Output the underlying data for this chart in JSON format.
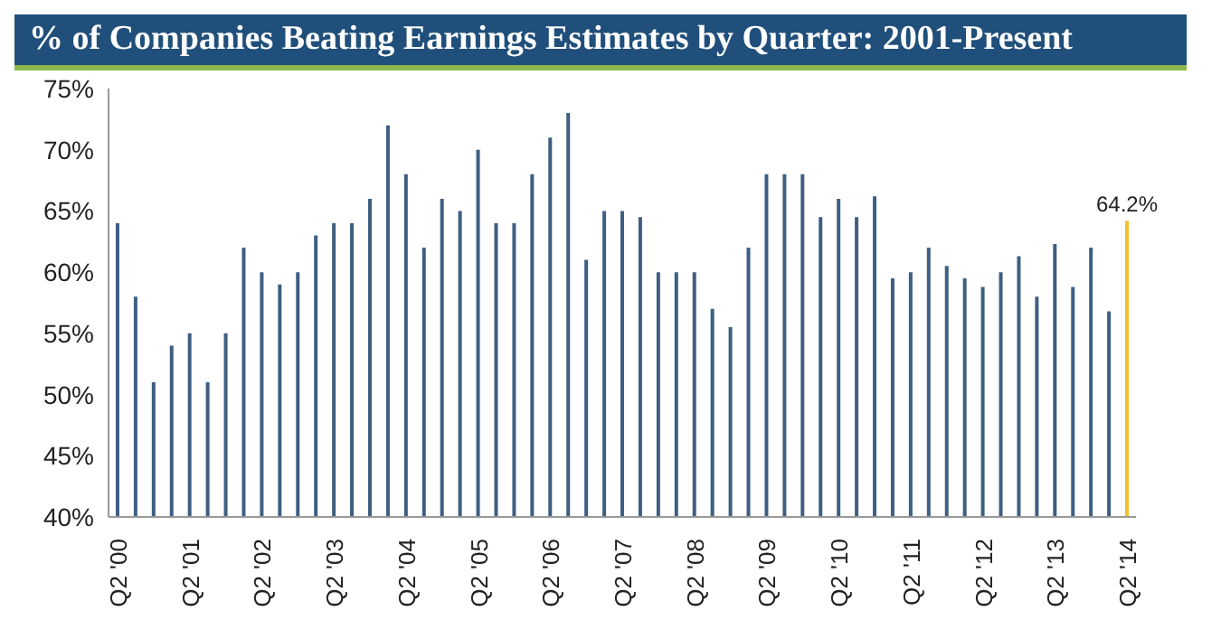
{
  "chart_data": {
    "type": "bar",
    "title": "% of Companies Beating Earnings Estimates by Quarter: 2001-Present",
    "categories": [
      "Q2 '00",
      null,
      null,
      null,
      "Q2 '01",
      null,
      null,
      null,
      "Q2 '02",
      null,
      null,
      null,
      "Q2 '03",
      null,
      null,
      null,
      "Q2 '04",
      null,
      null,
      null,
      "Q2 '05",
      null,
      null,
      null,
      "Q2 '06",
      null,
      null,
      null,
      "Q2 '07",
      null,
      null,
      null,
      "Q2 '08",
      null,
      null,
      null,
      "Q2 '09",
      null,
      null,
      null,
      "Q2 '10",
      null,
      null,
      null,
      "Q2 '11",
      null,
      null,
      null,
      "Q2 '12",
      null,
      null,
      null,
      "Q2 '13",
      null,
      null,
      null,
      "Q2 '14"
    ],
    "values": [
      64,
      58,
      51,
      54,
      55,
      51,
      55,
      62,
      60,
      59,
      60,
      63,
      64,
      64,
      66,
      72,
      68,
      62,
      66,
      65,
      70,
      64,
      64,
      68,
      71,
      73,
      61,
      65,
      65,
      64.5,
      60,
      60,
      60,
      57,
      55.5,
      62,
      68,
      68,
      68,
      64.5,
      66,
      64.5,
      66.2,
      59.5,
      60,
      62,
      60.5,
      59.5,
      58.8,
      60,
      61.3,
      58,
      62.3,
      58.8,
      62,
      56.8,
      64.2
    ],
    "colors": [
      "#3e5f82",
      "#3e5f82",
      "#3e5f82",
      "#3e5f82",
      "#3e5f82",
      "#3e5f82",
      "#3e5f82",
      "#3e5f82",
      "#3e5f82",
      "#3e5f82",
      "#3e5f82",
      "#3e5f82",
      "#3e5f82",
      "#3e5f82",
      "#3e5f82",
      "#3e5f82",
      "#3e5f82",
      "#3e5f82",
      "#3e5f82",
      "#3e5f82",
      "#3e5f82",
      "#3e5f82",
      "#3e5f82",
      "#3e5f82",
      "#3e5f82",
      "#3e5f82",
      "#3e5f82",
      "#3e5f82",
      "#3e5f82",
      "#3e5f82",
      "#3e5f82",
      "#3e5f82",
      "#3e5f82",
      "#3e5f82",
      "#3e5f82",
      "#3e5f82",
      "#3e5f82",
      "#3e5f82",
      "#3e5f82",
      "#3e5f82",
      "#3e5f82",
      "#3e5f82",
      "#3e5f82",
      "#3e5f82",
      "#3e5f82",
      "#3e5f82",
      "#3e5f82",
      "#3e5f82",
      "#3e5f82",
      "#3e5f82",
      "#3e5f82",
      "#3e5f82",
      "#3e5f82",
      "#3e5f82",
      "#3e5f82",
      "#3e5f82",
      "#f2c032"
    ],
    "value_labels": [
      null,
      null,
      null,
      null,
      null,
      null,
      null,
      null,
      null,
      null,
      null,
      null,
      null,
      null,
      null,
      null,
      null,
      null,
      null,
      null,
      null,
      null,
      null,
      null,
      null,
      null,
      null,
      null,
      null,
      null,
      null,
      null,
      null,
      null,
      null,
      null,
      null,
      null,
      null,
      null,
      null,
      null,
      null,
      null,
      null,
      null,
      null,
      null,
      null,
      null,
      null,
      null,
      null,
      null,
      null,
      null,
      "64.2%"
    ],
    "ylim": [
      40,
      75
    ],
    "yticks": [
      {
        "value": 40,
        "label": "40%"
      },
      {
        "value": 45,
        "label": "45%"
      },
      {
        "value": 50,
        "label": "50%"
      },
      {
        "value": 55,
        "label": "55%"
      },
      {
        "value": 60,
        "label": "60%"
      },
      {
        "value": 65,
        "label": "65%"
      },
      {
        "value": 70,
        "label": "70%"
      },
      {
        "value": 75,
        "label": "75%"
      }
    ],
    "grid": false,
    "legend": false
  }
}
